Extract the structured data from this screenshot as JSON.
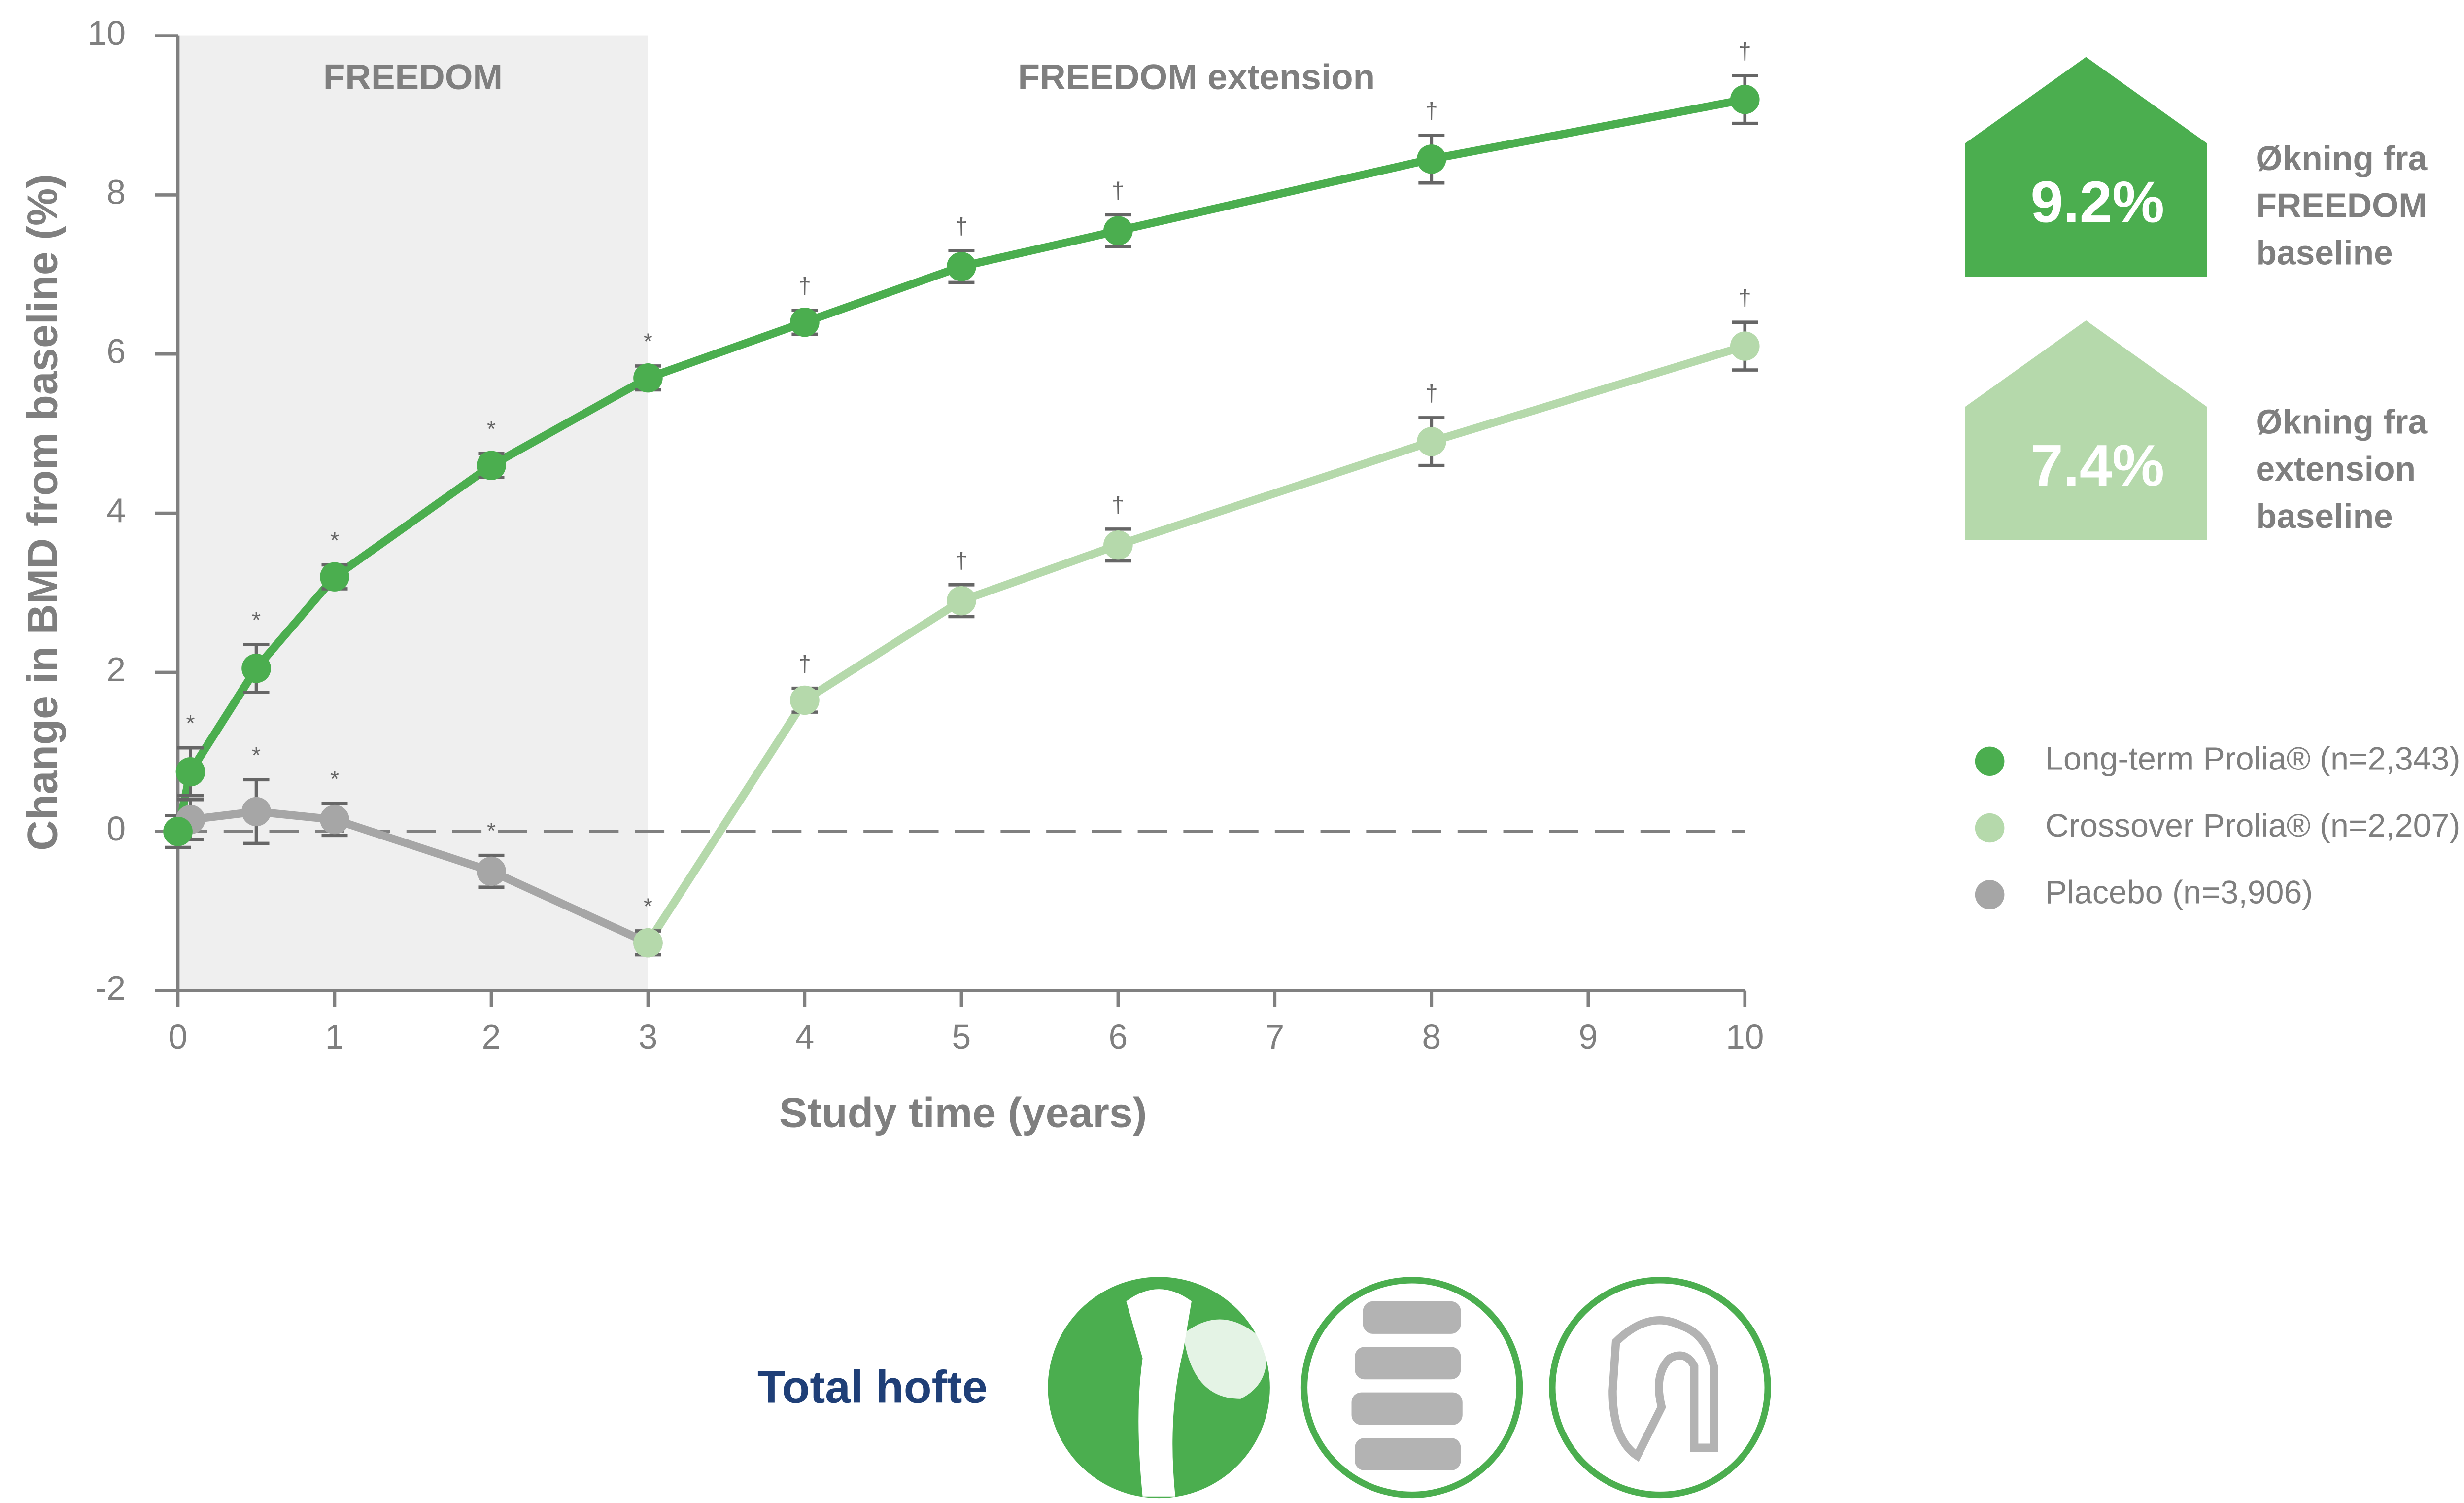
{
  "chart_data": {
    "type": "line",
    "xlabel": "Study time (years)",
    "ylabel": "Change in BMD from baseline (%)",
    "xlim": [
      0,
      10
    ],
    "xticks": [
      0,
      1,
      2,
      3,
      4,
      5,
      6,
      7,
      8,
      9,
      10
    ],
    "ylim": [
      -2,
      10
    ],
    "yticks": [
      -2,
      0,
      2,
      4,
      6,
      8,
      10
    ],
    "reference_line": 0,
    "regions": [
      {
        "label": "FREEDOM",
        "x": [
          0,
          3
        ],
        "shaded": true
      },
      {
        "label": "FREEDOM extension",
        "x": [
          3,
          10
        ],
        "shaded": false
      }
    ],
    "series": [
      {
        "name": "Long-term Prolia® (n=2,343)",
        "color": "#4bae4f",
        "x": [
          0,
          0.08,
          0.5,
          1,
          2,
          3,
          4,
          5,
          6,
          8,
          10
        ],
        "values": [
          0,
          0.75,
          2.05,
          3.2,
          4.6,
          5.7,
          6.4,
          7.1,
          7.55,
          8.45,
          9.2
        ],
        "errors": [
          0,
          0.3,
          0.3,
          0.15,
          0.15,
          0.15,
          0.15,
          0.2,
          0.2,
          0.3,
          0.3
        ],
        "point_labels": [
          null,
          "*",
          "*",
          "*",
          "*",
          "*",
          "†",
          "†",
          "†",
          "†",
          "†"
        ]
      },
      {
        "name": "Crossover Prolia® (n=2,207)",
        "color": "#b5d9ab",
        "x": [
          3,
          4,
          5,
          6,
          8,
          10
        ],
        "values": [
          -1.4,
          1.65,
          2.9,
          3.6,
          4.9,
          6.1
        ],
        "errors": [
          0.15,
          0.15,
          0.2,
          0.2,
          0.3,
          0.3
        ],
        "point_labels": [
          null,
          "†",
          "†",
          "†",
          "†",
          "†"
        ]
      },
      {
        "name": "Placebo (n=3,906)",
        "color": "#a6a6a6",
        "x": [
          0,
          0.08,
          0.5,
          1,
          2,
          3
        ],
        "values": [
          0,
          0.15,
          0.25,
          0.15,
          -0.5,
          -1.4
        ],
        "errors": [
          0.2,
          0.25,
          0.4,
          0.2,
          0.2,
          0.15
        ],
        "point_labels": [
          null,
          null,
          "*",
          "*",
          "*",
          "*"
        ]
      }
    ],
    "callouts": [
      {
        "value": 9.2,
        "label": "9.2%",
        "text": [
          "Økning fra",
          "FREEDOM",
          "baseline"
        ],
        "color": "#4bae4f"
      },
      {
        "value": 7.4,
        "label": "7.4%",
        "text": [
          "Økning fra",
          "extension",
          "baseline"
        ],
        "color": "#b5d9ab"
      }
    ],
    "footer_label": "Total hofte"
  }
}
